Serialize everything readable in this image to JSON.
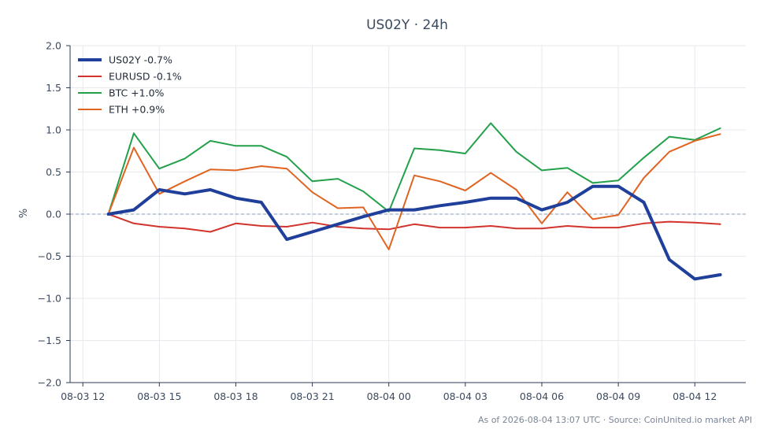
{
  "chart_data": {
    "type": "line",
    "title": "US02Y · 24h",
    "ylabel": "%",
    "ylim": [
      -2.0,
      2.0
    ],
    "xlim": [
      -0.5,
      26.0
    ],
    "grid": true,
    "legend_position": "top-left",
    "zero_line": true,
    "y_ticks": [
      -2.0,
      -1.5,
      -1.0,
      -0.5,
      0.0,
      0.5,
      1.0,
      1.5,
      2.0
    ],
    "y_tick_labels": [
      "−2.0",
      "−1.5",
      "−1.0",
      "−0.5",
      "0.0",
      "0.5",
      "1.0",
      "1.5",
      "2.0"
    ],
    "x_ticks": [
      0,
      3,
      6,
      9,
      12,
      15,
      18,
      21,
      24
    ],
    "x_tick_labels": [
      "08-03 12",
      "08-03 15",
      "08-03 18",
      "08-03 21",
      "08-04 00",
      "08-04 03",
      "08-04 06",
      "08-04 09",
      "08-04 12"
    ],
    "x": [
      1,
      2,
      3,
      4,
      5,
      6,
      7,
      8,
      9,
      10,
      11,
      12,
      13,
      14,
      15,
      16,
      17,
      18,
      19,
      20,
      21,
      22,
      23,
      24,
      25
    ],
    "series": [
      {
        "name": "US02Y -0.7%",
        "color": "#1f3f9a",
        "width": 4,
        "values": [
          0.0,
          0.05,
          0.29,
          0.24,
          0.29,
          0.19,
          0.14,
          -0.3,
          -0.21,
          -0.12,
          -0.03,
          0.05,
          0.05,
          0.1,
          0.14,
          0.19,
          0.19,
          0.05,
          0.14,
          0.33,
          0.33,
          0.14,
          -0.54,
          -0.77,
          -0.72
        ]
      },
      {
        "name": "EURUSD -0.1%",
        "color": "#d2332c",
        "width": 2,
        "values": [
          0.0,
          -0.11,
          -0.15,
          -0.17,
          -0.21,
          -0.11,
          -0.14,
          -0.15,
          -0.1,
          -0.15,
          -0.17,
          -0.18,
          -0.12,
          -0.16,
          -0.16,
          -0.14,
          -0.17,
          -0.17,
          -0.14,
          -0.16,
          -0.16,
          -0.11,
          -0.09,
          -0.1,
          -0.12
        ]
      },
      {
        "name": "BTC +1.0%",
        "color": "#23a04a",
        "width": 2,
        "values": [
          0.0,
          0.96,
          0.54,
          0.66,
          0.87,
          0.81,
          0.81,
          0.68,
          0.39,
          0.42,
          0.27,
          0.03,
          0.78,
          0.76,
          0.72,
          1.08,
          0.74,
          0.52,
          0.55,
          0.37,
          0.4,
          0.67,
          0.92,
          0.88,
          1.02
        ]
      },
      {
        "name": "ETH +0.9%",
        "color": "#e06421",
        "width": 2,
        "values": [
          0.0,
          0.79,
          0.24,
          0.39,
          0.53,
          0.52,
          0.57,
          0.54,
          0.26,
          0.07,
          0.08,
          -0.42,
          0.46,
          0.39,
          0.28,
          0.49,
          0.29,
          -0.11,
          0.26,
          -0.06,
          -0.01,
          0.43,
          0.74,
          0.87,
          0.95
        ]
      }
    ],
    "footer": "As of 2026-08-04 13:07 UTC · Source: CoinUnited.io market API"
  },
  "colors": {
    "axis": "#2b3a55",
    "grid": "#e6e9ee",
    "zero_line": "#8a9bb5",
    "text": "#3c4a5e"
  }
}
